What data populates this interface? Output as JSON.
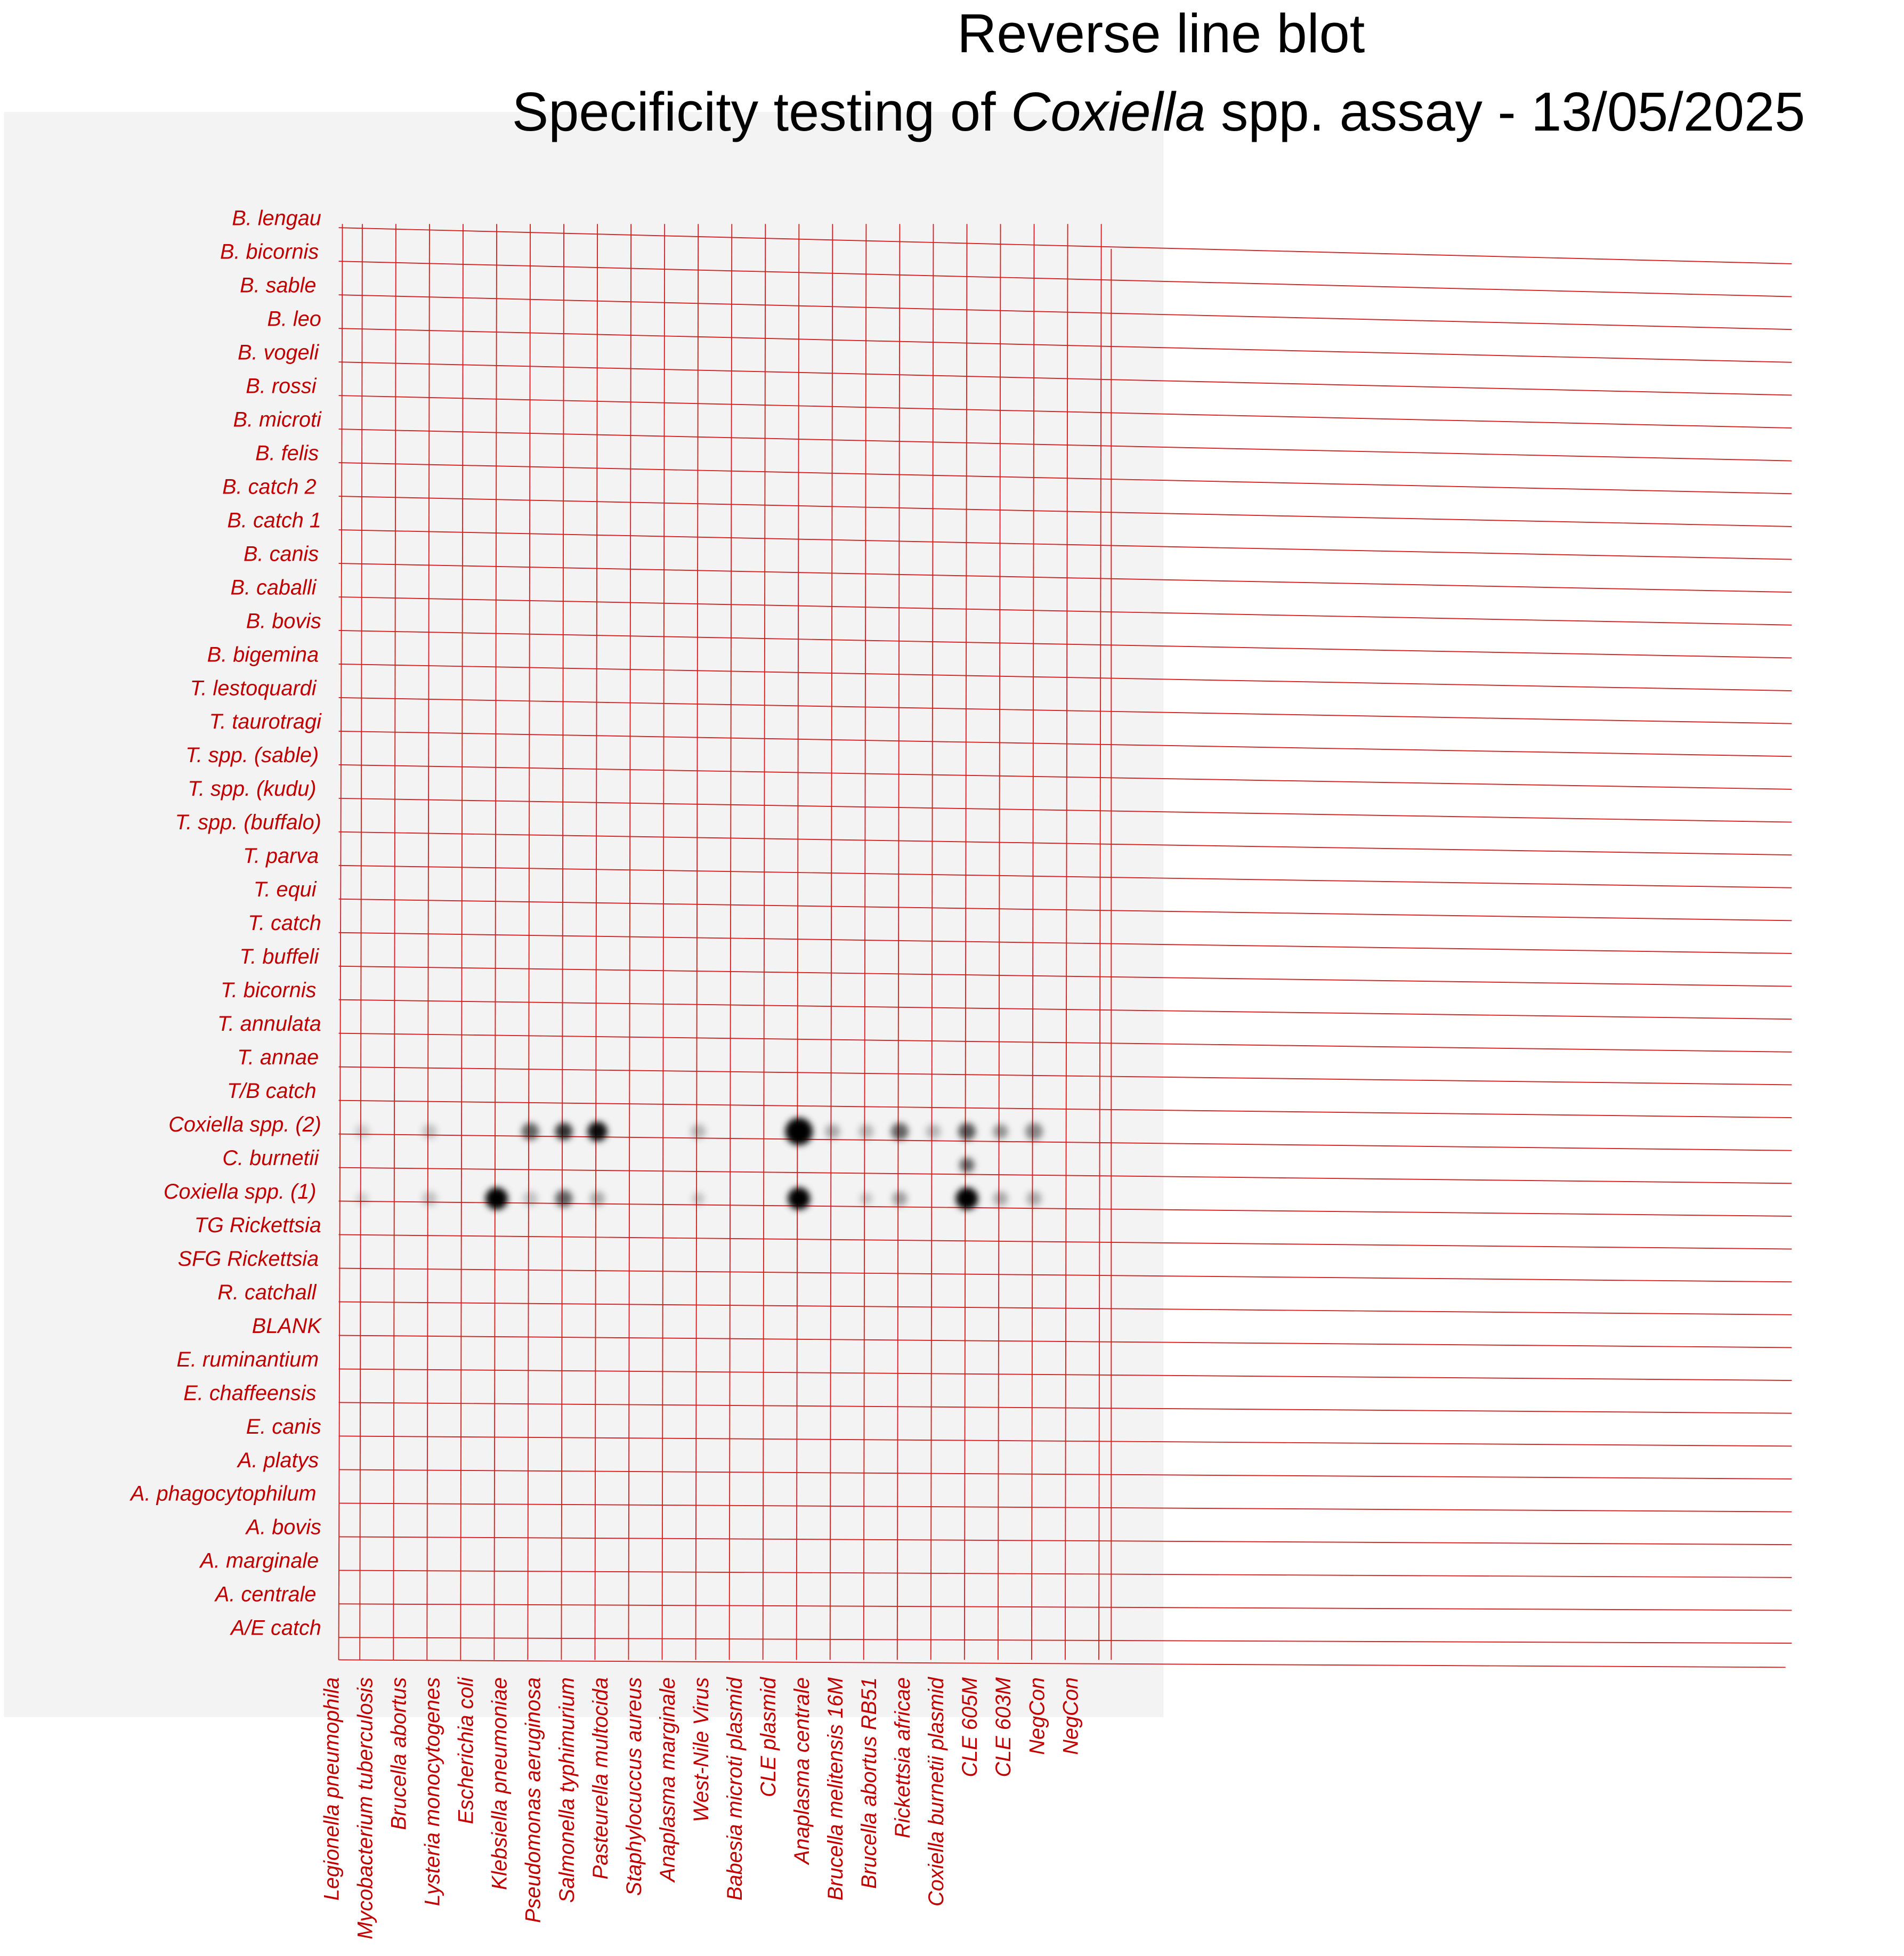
{
  "title": {
    "line1": "Reverse line blot",
    "line2": [
      "Specificity testing of ",
      "Coxiella",
      " spp. assay - 13/05/2025"
    ]
  },
  "rows": [
    "B. lengau",
    "B. bicornis",
    "B. sable",
    "B. leo",
    "B. vogeli",
    "B. rossi",
    "B. microti",
    "B. felis",
    "B. catch 2",
    "B. catch 1",
    "B. canis",
    "B. caballi",
    "B. bovis",
    "B. bigemina",
    "T. lestoquardi",
    "T. taurotragi",
    "T. spp. (sable)",
    "T. spp. (kudu)",
    "T. spp. (buffalo)",
    "T. parva",
    "T. equi",
    "T. catch",
    "T. buffeli",
    "T. bicornis",
    "T. annulata",
    "T. annae",
    "T/B catch",
    "Coxiella spp. (2)",
    "C. burnetii",
    "Coxiella spp. (1)",
    "TG Rickettsia",
    "SFG Rickettsia",
    "R. catchall",
    "BLANK",
    "E. ruminantium",
    "E. chaffeensis",
    "E. canis",
    "A. platys",
    "A. phagocytophilum",
    "A. bovis",
    "A. marginale",
    "A. centrale",
    "A/E catch"
  ],
  "columns": [
    "Legionella pneumophila",
    "Mycobacterium tuberculosis",
    "Brucella abortus",
    "Lysteria monocytogenes",
    "Escherichia coli",
    "Klebsiella pneumoniae",
    "Pseudomonas aeruginosa",
    "Salmonella typhimurium",
    "Pasteurella multocida",
    "Staphylocuccus aureus",
    "Anaplasma marginale",
    "West-Nile Virus",
    "Babesia microti plasmid",
    "CLE plasmid",
    "Anaplasma centrale",
    "Brucella melitensis 16M",
    "Brucella abortus RB51",
    "Rickettsia africae",
    "Coxiella burnetii plasmid",
    "CLE 605M",
    "CLE 603M",
    "NegCon",
    "NegCon"
  ]
}
